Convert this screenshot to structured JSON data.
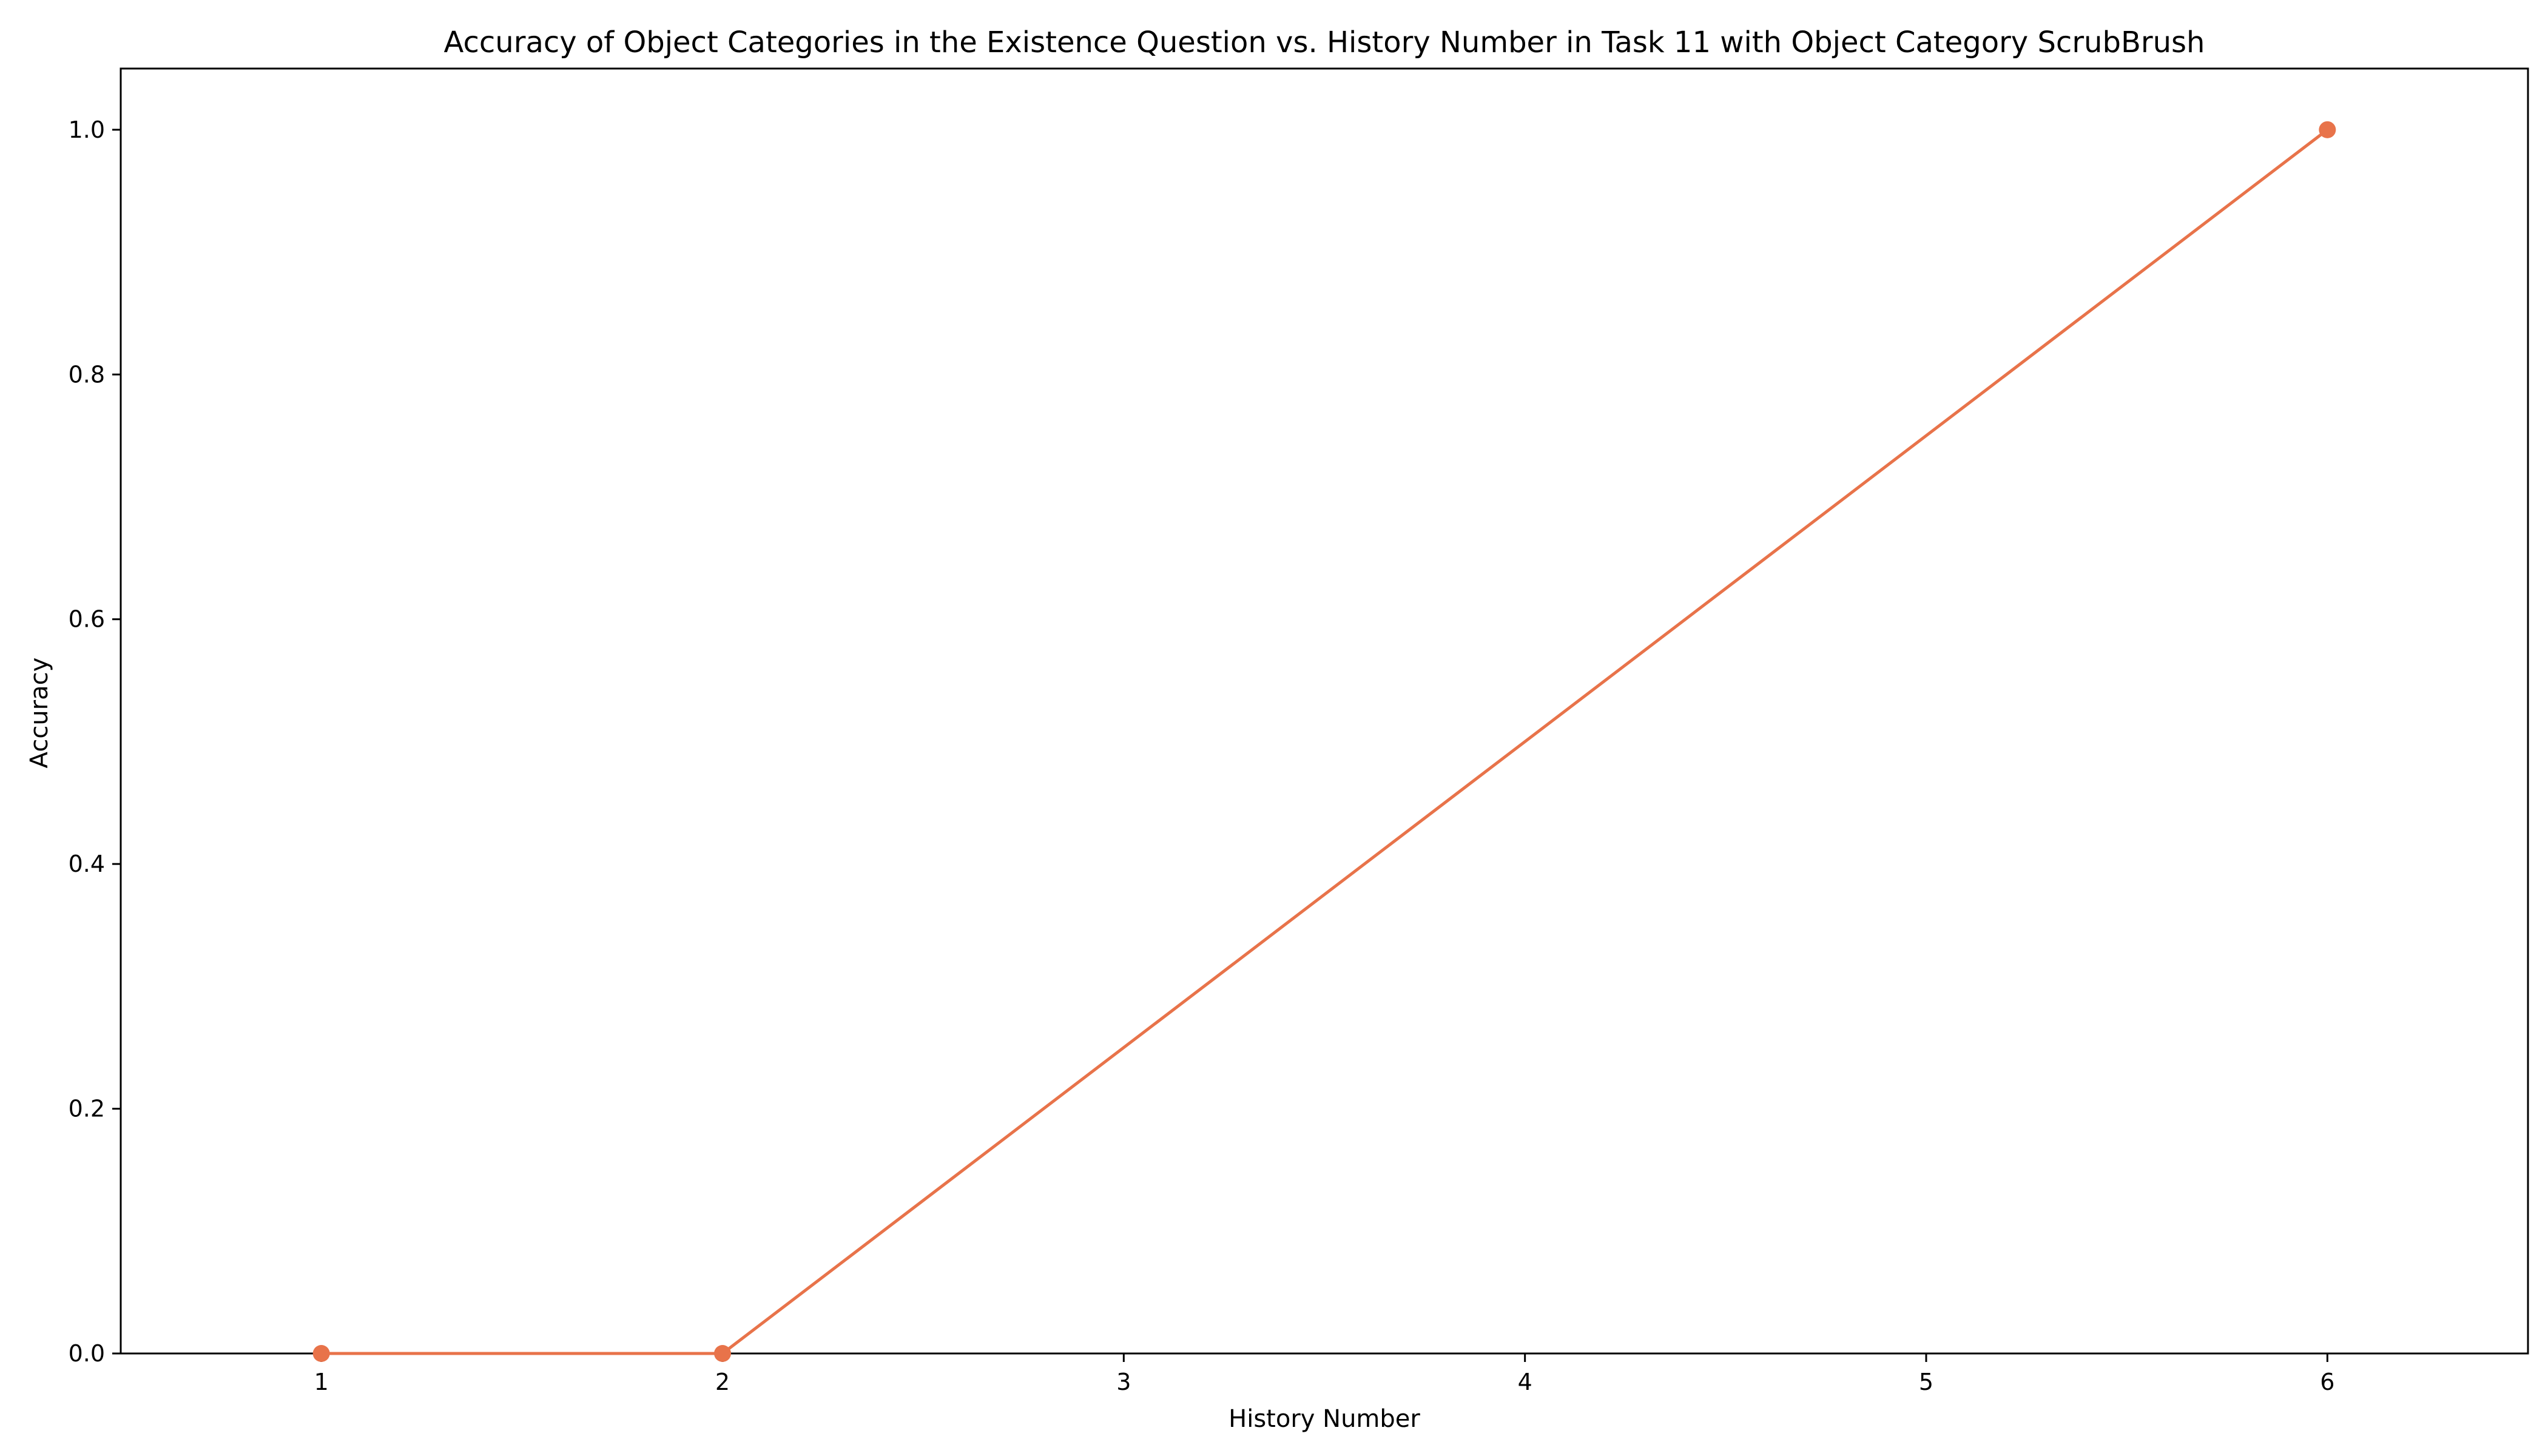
{
  "chart_data": {
    "type": "line",
    "title": "Accuracy of Object Categories in the Existence Question vs. History Number in Task 11 with Object Category ScrubBrush",
    "xlabel": "History Number",
    "ylabel": "Accuracy",
    "xlim": [
      0.5,
      6.5
    ],
    "ylim": [
      0.0,
      1.05
    ],
    "x_ticks": [
      1,
      2,
      3,
      4,
      5,
      6
    ],
    "x_tick_labels": [
      "1",
      "2",
      "3",
      "4",
      "5",
      "6"
    ],
    "y_ticks": [
      0.0,
      0.2,
      0.4,
      0.6,
      0.8,
      1.0
    ],
    "y_tick_labels": [
      "0.0",
      "0.2",
      "0.4",
      "0.6",
      "0.8",
      "1.0"
    ],
    "grid": false,
    "legend": false,
    "series": [
      {
        "x": [
          1,
          2,
          6
        ],
        "y": [
          0.0,
          0.0,
          1.0
        ],
        "color": "#e8734a",
        "marker": "circle"
      }
    ]
  }
}
